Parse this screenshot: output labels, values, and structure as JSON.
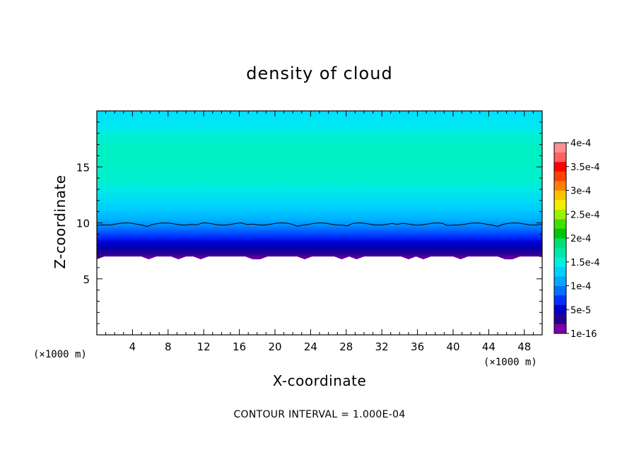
{
  "chart_data": {
    "type": "contour",
    "title": "density of cloud",
    "xlabel": "X-coordinate",
    "ylabel": "Z-coordinate",
    "x_unit": "(×1000 m)",
    "z_unit": "(×1000 m)",
    "xlim": [
      0,
      50
    ],
    "ylim": [
      0,
      20
    ],
    "x_ticks": [
      4,
      8,
      12,
      16,
      20,
      24,
      28,
      32,
      36,
      40,
      44,
      48
    ],
    "y_ticks": [
      5,
      10,
      15
    ],
    "contour_interval_text": "CONTOUR INTERVAL = 1.000E-04",
    "colorbar": {
      "labels": [
        "1e-16",
        "5e-5",
        "1e-4",
        "1.5e-4",
        "2e-4",
        "2.5e-4",
        "3e-4",
        "3.5e-4",
        "4e-4"
      ],
      "colors": [
        "#7a00a8",
        "#2a0090",
        "#0000c8",
        "#0030ff",
        "#0070ff",
        "#00a8ff",
        "#00d0ff",
        "#00f0e0",
        "#00e8a8",
        "#00e070",
        "#00c800",
        "#40e000",
        "#a0f000",
        "#f0f000",
        "#ffc000",
        "#ff8000",
        "#ff4000",
        "#ff0000",
        "#ff6060",
        "#ff9090"
      ]
    },
    "profile": [
      {
        "z": 7.0,
        "color": "#7a00a8"
      },
      {
        "z": 7.5,
        "color": "#2a0090"
      },
      {
        "z": 8.0,
        "color": "#0000a8"
      },
      {
        "z": 8.5,
        "color": "#0000d8"
      },
      {
        "z": 9.0,
        "color": "#0030ff"
      },
      {
        "z": 9.5,
        "color": "#0060ff"
      },
      {
        "z": 10.0,
        "color": "#0090ff"
      },
      {
        "z": 10.5,
        "color": "#00b0ff"
      },
      {
        "z": 11.2,
        "color": "#00c8ff"
      },
      {
        "z": 12.0,
        "color": "#00d8f8"
      },
      {
        "z": 13.0,
        "color": "#00e8e8"
      },
      {
        "z": 13.8,
        "color": "#00f0d0"
      },
      {
        "z": 16.5,
        "color": "#00f0c0"
      },
      {
        "z": 18.0,
        "color": "#00f0d8"
      },
      {
        "z": 18.6,
        "color": "#00e8f0"
      },
      {
        "z": 20.0,
        "color": "#00e0ff"
      }
    ],
    "cloud_base_z": 7.0,
    "contour_line_z": 9.9
  }
}
